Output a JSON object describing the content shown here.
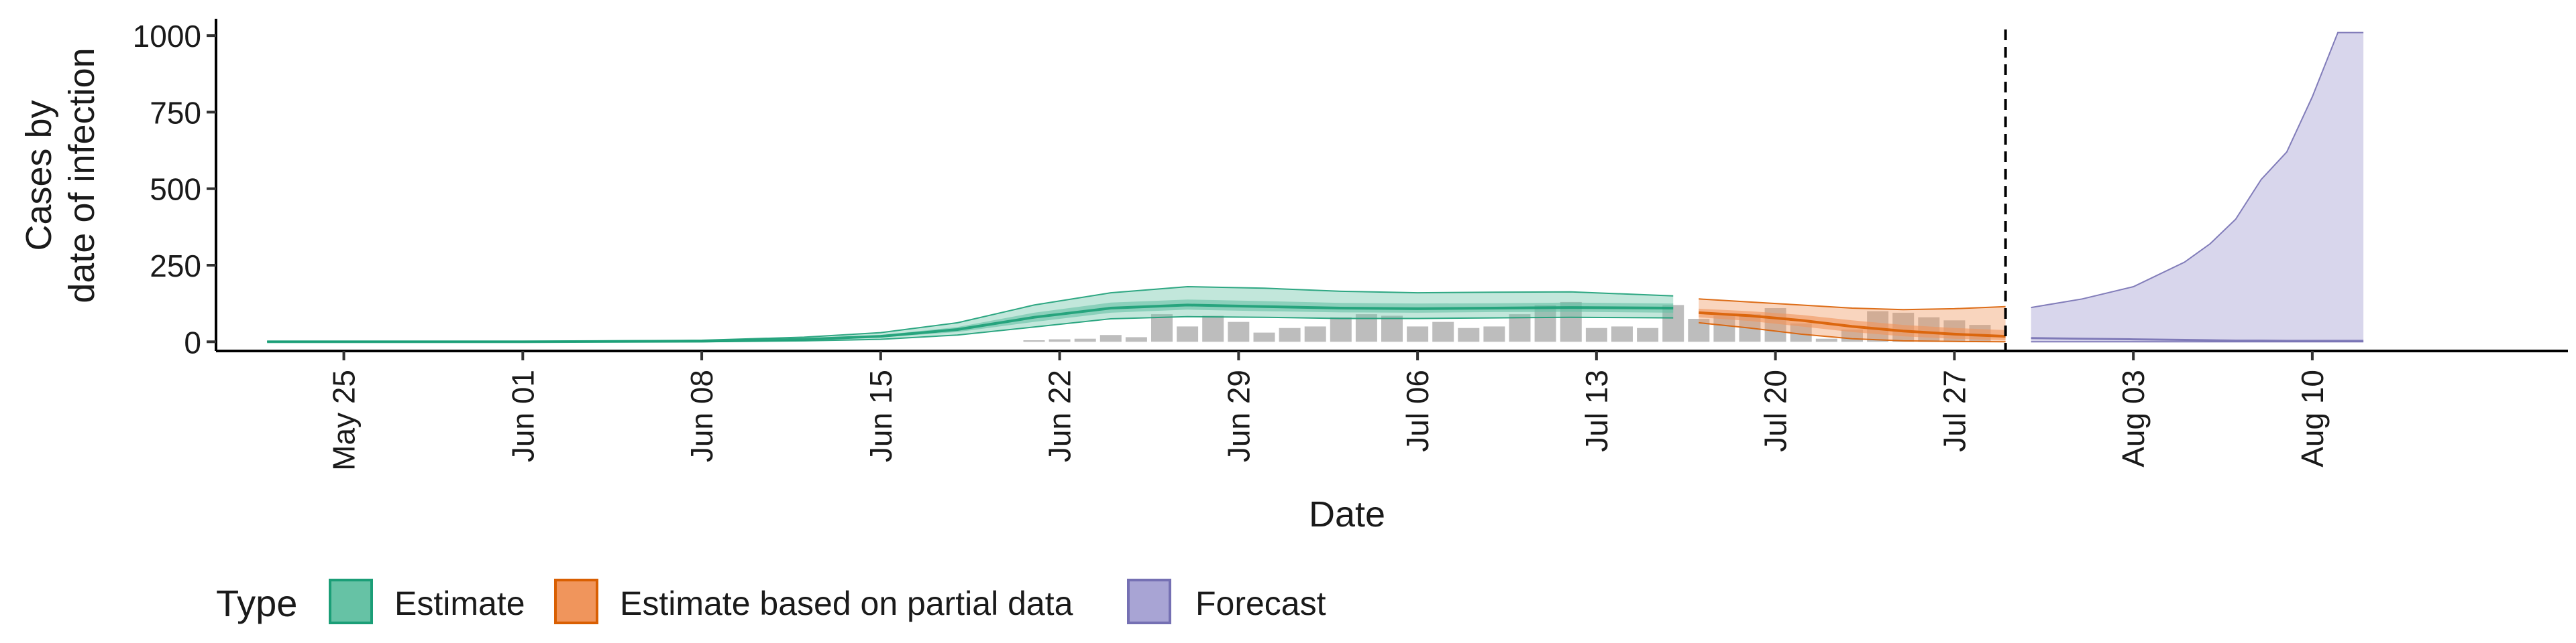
{
  "chart_data": {
    "type": "area",
    "xlabel": "Date",
    "ylabel_lines": [
      "Cases by",
      "date of infection"
    ],
    "ylim": [
      -30,
      1055
    ],
    "y_ticks": [
      0,
      250,
      500,
      750,
      1000
    ],
    "x_ticks": [
      {
        "date": "2020-05-25",
        "label": "May 25"
      },
      {
        "date": "2020-06-01",
        "label": "Jun 01"
      },
      {
        "date": "2020-06-08",
        "label": "Jun 08"
      },
      {
        "date": "2020-06-15",
        "label": "Jun 15"
      },
      {
        "date": "2020-06-22",
        "label": "Jun 22"
      },
      {
        "date": "2020-06-29",
        "label": "Jun 29"
      },
      {
        "date": "2020-07-06",
        "label": "Jul 06"
      },
      {
        "date": "2020-07-13",
        "label": "Jul 13"
      },
      {
        "date": "2020-07-20",
        "label": "Jul 20"
      },
      {
        "date": "2020-07-27",
        "label": "Jul 27"
      },
      {
        "date": "2020-08-03",
        "label": "Aug 03"
      },
      {
        "date": "2020-08-10",
        "label": "Aug 10"
      }
    ],
    "xlim": [
      "2020-05-20",
      "2020-08-20"
    ],
    "forecast_start": "2020-07-29",
    "legend": {
      "title": "Type",
      "position": "bottom",
      "items": [
        {
          "label": "Estimate",
          "fill": "#66c2a5",
          "stroke": "#1b9e77"
        },
        {
          "label": "Estimate based on partial data",
          "fill": "#f0955c",
          "stroke": "#d95f02"
        },
        {
          "label": "Forecast",
          "fill": "#a8a4d4",
          "stroke": "#7570b3"
        }
      ]
    },
    "reported_cases": {
      "color": "#bdbdbd",
      "points": [
        [
          "2020-06-21",
          5
        ],
        [
          "2020-06-22",
          8
        ],
        [
          "2020-06-23",
          10
        ],
        [
          "2020-06-24",
          22
        ],
        [
          "2020-06-25",
          15
        ],
        [
          "2020-06-26",
          90
        ],
        [
          "2020-06-27",
          50
        ],
        [
          "2020-06-28",
          85
        ],
        [
          "2020-06-29",
          65
        ],
        [
          "2020-06-30",
          30
        ],
        [
          "2020-07-01",
          45
        ],
        [
          "2020-07-02",
          50
        ],
        [
          "2020-07-03",
          80
        ],
        [
          "2020-07-04",
          90
        ],
        [
          "2020-07-05",
          85
        ],
        [
          "2020-07-06",
          50
        ],
        [
          "2020-07-07",
          65
        ],
        [
          "2020-07-08",
          45
        ],
        [
          "2020-07-09",
          50
        ],
        [
          "2020-07-10",
          90
        ],
        [
          "2020-07-11",
          120
        ],
        [
          "2020-07-12",
          130
        ],
        [
          "2020-07-13",
          45
        ],
        [
          "2020-07-14",
          50
        ],
        [
          "2020-07-15",
          45
        ],
        [
          "2020-07-16",
          120
        ],
        [
          "2020-07-17",
          75
        ],
        [
          "2020-07-18",
          85
        ],
        [
          "2020-07-19",
          90
        ],
        [
          "2020-07-20",
          110
        ],
        [
          "2020-07-21",
          60
        ],
        [
          "2020-07-22",
          10
        ],
        [
          "2020-07-23",
          40
        ],
        [
          "2020-07-24",
          100
        ],
        [
          "2020-07-25",
          95
        ],
        [
          "2020-07-26",
          80
        ],
        [
          "2020-07-27",
          70
        ],
        [
          "2020-07-28",
          55
        ]
      ]
    },
    "series": [
      {
        "name": "Estimate",
        "color": "#1b9e77",
        "x": [
          "2020-05-22",
          "2020-06-01",
          "2020-06-08",
          "2020-06-12",
          "2020-06-15",
          "2020-06-18",
          "2020-06-21",
          "2020-06-24",
          "2020-06-27",
          "2020-06-30",
          "2020-07-03",
          "2020-07-06",
          "2020-07-09",
          "2020-07-12",
          "2020-07-16"
        ],
        "median": [
          0,
          0,
          2,
          8,
          18,
          40,
          80,
          110,
          120,
          115,
          110,
          108,
          110,
          112,
          110
        ],
        "lower_50": [
          0,
          0,
          1,
          6,
          14,
          32,
          65,
          95,
          105,
          100,
          96,
          95,
          97,
          98,
          95
        ],
        "upper_50": [
          0,
          0,
          3,
          10,
          22,
          48,
          95,
          128,
          138,
          133,
          127,
          125,
          126,
          128,
          125
        ],
        "lower_90": [
          0,
          0,
          0,
          3,
          8,
          22,
          48,
          75,
          82,
          80,
          76,
          76,
          78,
          80,
          78
        ],
        "upper_90": [
          1,
          1,
          5,
          15,
          30,
          62,
          120,
          160,
          180,
          175,
          165,
          160,
          162,
          163,
          150
        ]
      },
      {
        "name": "Estimate based on partial data",
        "color": "#d95f02",
        "x": [
          "2020-07-17",
          "2020-07-19",
          "2020-07-21",
          "2020-07-23",
          "2020-07-25",
          "2020-07-27",
          "2020-07-29"
        ],
        "median": [
          95,
          85,
          70,
          50,
          35,
          25,
          18
        ],
        "lower_50": [
          80,
          68,
          50,
          32,
          18,
          10,
          5
        ],
        "upper_50": [
          108,
          100,
          88,
          70,
          55,
          45,
          38
        ],
        "lower_90": [
          62,
          45,
          25,
          10,
          3,
          1,
          0
        ],
        "upper_90": [
          140,
          130,
          120,
          110,
          105,
          108,
          115
        ]
      },
      {
        "name": "Forecast",
        "color": "#7570b3",
        "x": [
          "2020-07-30",
          "2020-08-01",
          "2020-08-03",
          "2020-08-05",
          "2020-08-06",
          "2020-08-07",
          "2020-08-08",
          "2020-08-09",
          "2020-08-10",
          "2020-08-11",
          "2020-08-12"
        ],
        "median": [
          12,
          10,
          8,
          6,
          5,
          4,
          4,
          3,
          3,
          3,
          3
        ],
        "lower_90": [
          0,
          0,
          0,
          0,
          0,
          0,
          0,
          0,
          0,
          0,
          0
        ],
        "upper_90": [
          112,
          140,
          180,
          260,
          320,
          400,
          530,
          620,
          800,
          1010,
          1010
        ]
      }
    ]
  }
}
